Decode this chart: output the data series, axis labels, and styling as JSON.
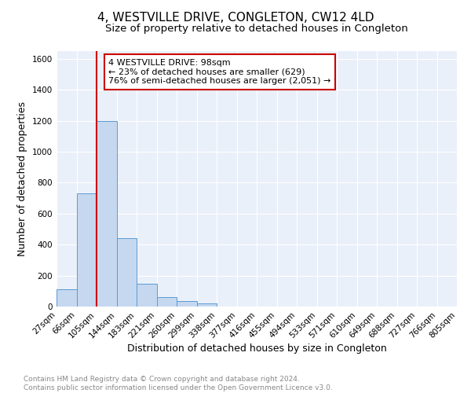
{
  "title": "4, WESTVILLE DRIVE, CONGLETON, CW12 4LD",
  "subtitle": "Size of property relative to detached houses in Congleton",
  "xlabel": "Distribution of detached houses by size in Congleton",
  "ylabel": "Number of detached properties",
  "bin_labels": [
    "27sqm",
    "66sqm",
    "105sqm",
    "144sqm",
    "183sqm",
    "221sqm",
    "260sqm",
    "299sqm",
    "338sqm",
    "377sqm",
    "416sqm",
    "455sqm",
    "494sqm",
    "533sqm",
    "571sqm",
    "610sqm",
    "649sqm",
    "688sqm",
    "727sqm",
    "766sqm",
    "805sqm"
  ],
  "bar_heights": [
    110,
    730,
    1200,
    440,
    145,
    60,
    35,
    18,
    0,
    0,
    0,
    0,
    0,
    0,
    0,
    0,
    0,
    0,
    0,
    0
  ],
  "bar_color": "#c5d8f0",
  "bar_edge_color": "#5b9bd5",
  "red_line_x": 2,
  "annotation_text": "4 WESTVILLE DRIVE: 98sqm\n← 23% of detached houses are smaller (629)\n76% of semi-detached houses are larger (2,051) →",
  "annotation_box_color": "#ffffff",
  "annotation_box_edge_color": "#cc0000",
  "ylim": [
    0,
    1650
  ],
  "yticks": [
    0,
    200,
    400,
    600,
    800,
    1000,
    1200,
    1400,
    1600
  ],
  "footer_text": "Contains HM Land Registry data © Crown copyright and database right 2024.\nContains public sector information licensed under the Open Government Licence v3.0.",
  "bg_color": "#eaf0f9",
  "plot_bg_color": "#eaf0f9",
  "title_fontsize": 11,
  "subtitle_fontsize": 9.5,
  "axis_label_fontsize": 9,
  "tick_fontsize": 7.5,
  "footer_fontsize": 6.5,
  "annotation_fontsize": 8
}
